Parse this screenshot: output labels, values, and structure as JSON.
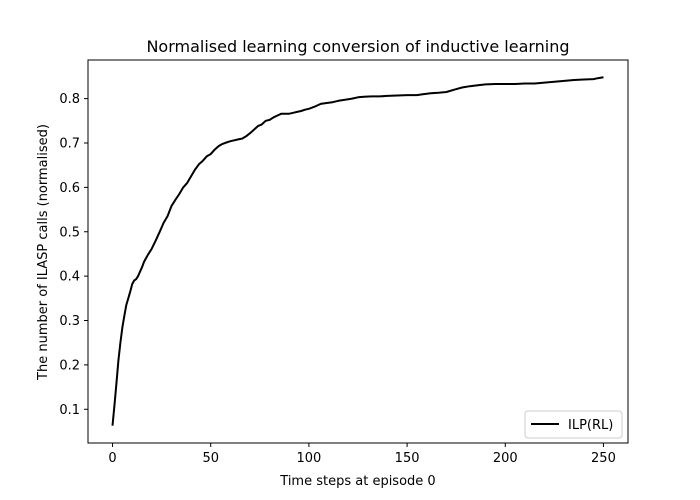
{
  "chart_data": {
    "type": "line",
    "title": "Normalised learning conversion of inductive learning",
    "xlabel": "Time steps at episode 0",
    "ylabel": "The number of ILASP calls (normalised)",
    "xlim": [
      -12.5,
      262.5
    ],
    "ylim": [
      0.024,
      0.887
    ],
    "xticks": [
      0,
      50,
      100,
      150,
      200,
      250
    ],
    "yticks": [
      0.1,
      0.2,
      0.3,
      0.4,
      0.5,
      0.6,
      0.7,
      0.8
    ],
    "grid": false,
    "legend_position": "lower-right",
    "series": [
      {
        "name": "ILP(RL)",
        "color": "#000000",
        "x": [
          0,
          1,
          2,
          3,
          4,
          5,
          6,
          7,
          8,
          9,
          10,
          11,
          12,
          13,
          14,
          15,
          16,
          17,
          18,
          19,
          20,
          22,
          24,
          26,
          28,
          30,
          32,
          34,
          36,
          38,
          40,
          42,
          44,
          46,
          48,
          50,
          52,
          54,
          56,
          58,
          60,
          62,
          64,
          66,
          68,
          70,
          72,
          74,
          76,
          78,
          80,
          82,
          84,
          86,
          88,
          90,
          92,
          94,
          96,
          98,
          100,
          103,
          106,
          109,
          112,
          115,
          118,
          122,
          125,
          128,
          132,
          136,
          140,
          145,
          150,
          155,
          158,
          162,
          166,
          170,
          174,
          178,
          182,
          186,
          190,
          195,
          200,
          205,
          210,
          215,
          220,
          225,
          230,
          235,
          240,
          245,
          247,
          250
        ],
        "y": [
          0.063,
          0.11,
          0.16,
          0.21,
          0.25,
          0.285,
          0.31,
          0.335,
          0.35,
          0.365,
          0.382,
          0.39,
          0.393,
          0.4,
          0.41,
          0.42,
          0.432,
          0.44,
          0.448,
          0.455,
          0.462,
          0.48,
          0.5,
          0.52,
          0.535,
          0.558,
          0.572,
          0.585,
          0.6,
          0.61,
          0.625,
          0.64,
          0.652,
          0.66,
          0.67,
          0.675,
          0.685,
          0.693,
          0.698,
          0.701,
          0.704,
          0.706,
          0.708,
          0.71,
          0.715,
          0.722,
          0.73,
          0.738,
          0.742,
          0.75,
          0.752,
          0.758,
          0.762,
          0.766,
          0.766,
          0.766,
          0.768,
          0.77,
          0.772,
          0.775,
          0.777,
          0.782,
          0.788,
          0.79,
          0.792,
          0.795,
          0.797,
          0.8,
          0.803,
          0.804,
          0.805,
          0.805,
          0.806,
          0.807,
          0.808,
          0.808,
          0.81,
          0.812,
          0.813,
          0.815,
          0.82,
          0.825,
          0.828,
          0.83,
          0.832,
          0.833,
          0.833,
          0.833,
          0.834,
          0.834,
          0.836,
          0.838,
          0.84,
          0.842,
          0.843,
          0.844,
          0.846,
          0.848
        ]
      }
    ]
  }
}
